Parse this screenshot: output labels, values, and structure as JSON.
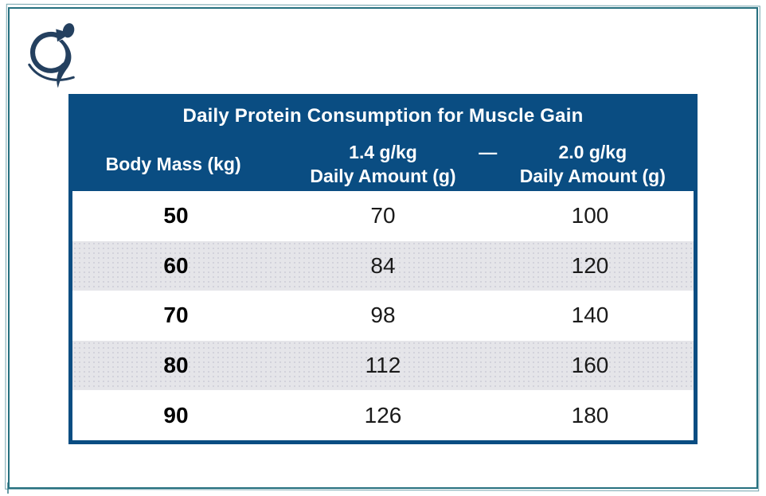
{
  "colors": {
    "header_blue": "#0a4d82",
    "frame_teal": "#26707f",
    "logo_navy": "#24405f",
    "row_alt_gray": "#e5e5e9"
  },
  "logo": {
    "icon": "motion-figure-arrow-logo"
  },
  "table": {
    "title": "Daily Protein Consumption for Muscle Gain",
    "header_dash": "—",
    "columns": [
      {
        "line1": "Body Mass (kg)",
        "line2": ""
      },
      {
        "line1": "1.4 g/kg",
        "line2": "Daily Amount (g)"
      },
      {
        "line1": "2.0 g/kg",
        "line2": "Daily Amount (g)"
      }
    ],
    "rows": [
      [
        "50",
        "70",
        "100"
      ],
      [
        "60",
        "84",
        "120"
      ],
      [
        "70",
        "98",
        "140"
      ],
      [
        "80",
        "112",
        "160"
      ],
      [
        "90",
        "126",
        "180"
      ]
    ]
  },
  "chart_data": {
    "type": "table",
    "title": "Daily Protein Consumption for Muscle Gain",
    "columns": [
      "Body Mass (kg)",
      "1.4 g/kg Daily Amount (g)",
      "2.0 g/kg Daily Amount (g)"
    ],
    "rows": [
      [
        50,
        70,
        100
      ],
      [
        60,
        84,
        120
      ],
      [
        70,
        98,
        140
      ],
      [
        80,
        112,
        160
      ],
      [
        90,
        126,
        180
      ]
    ]
  }
}
